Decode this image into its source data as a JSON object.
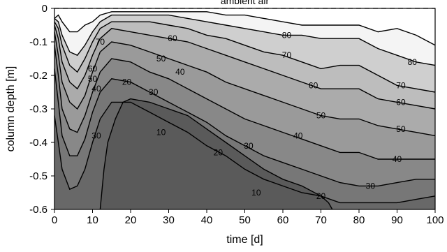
{
  "chart_data": {
    "type": "contour",
    "xlabel": "time [d]",
    "ylabel": "column depth [m]",
    "xlim": [
      0,
      100
    ],
    "ylim": [
      -0.6,
      0
    ],
    "xticks": [
      "0",
      "10",
      "20",
      "30",
      "40",
      "50",
      "60",
      "70",
      "80",
      "90",
      "100"
    ],
    "yticks": [
      "0",
      "-0.1",
      "-0.2",
      "-0.3",
      "-0.4",
      "-0.5",
      "-0.6"
    ],
    "annotation": "ambient air",
    "reference_line": {
      "y": 0,
      "style": "dashed"
    },
    "fill_colors": [
      "#5a5a5a",
      "#686868",
      "#777777",
      "#888888",
      "#9a9a9a",
      "#ababab",
      "#bdbdbd",
      "#cfcfcf",
      "#f4f4f4"
    ],
    "top_contour": [
      [
        0,
        -0.03
      ],
      [
        1,
        -0.02
      ],
      [
        2,
        -0.04
      ],
      [
        4,
        -0.07
      ],
      [
        6,
        -0.07
      ],
      [
        8,
        -0.05
      ],
      [
        10,
        -0.04
      ],
      [
        12,
        -0.02
      ],
      [
        15,
        -0.01
      ],
      [
        20,
        -0.01
      ],
      [
        25,
        -0.01
      ],
      [
        30,
        -0.01
      ],
      [
        35,
        -0.01
      ],
      [
        40,
        -0.01
      ],
      [
        45,
        -0.02
      ],
      [
        50,
        -0.02
      ],
      [
        55,
        -0.03
      ],
      [
        60,
        -0.04
      ],
      [
        65,
        -0.05
      ],
      [
        70,
        -0.05
      ],
      [
        75,
        -0.05
      ],
      [
        80,
        -0.05
      ],
      [
        85,
        -0.07
      ],
      [
        90,
        -0.06
      ],
      [
        95,
        -0.08
      ],
      [
        100,
        -0.11
      ]
    ],
    "contours": [
      {
        "level": 80,
        "points": [
          [
            0,
            -0.03
          ],
          [
            1,
            -0.04
          ],
          [
            2,
            -0.08
          ],
          [
            4,
            -0.13
          ],
          [
            6,
            -0.14
          ],
          [
            8,
            -0.11
          ],
          [
            10,
            -0.07
          ],
          [
            12,
            -0.04
          ],
          [
            15,
            -0.02
          ],
          [
            20,
            -0.02
          ],
          [
            25,
            -0.02
          ],
          [
            30,
            -0.02
          ],
          [
            35,
            -0.03
          ],
          [
            40,
            -0.04
          ],
          [
            45,
            -0.05
          ],
          [
            50,
            -0.06
          ],
          [
            55,
            -0.07
          ],
          [
            60,
            -0.08
          ],
          [
            65,
            -0.08
          ],
          [
            70,
            -0.09
          ],
          [
            75,
            -0.09
          ],
          [
            80,
            -0.09
          ],
          [
            85,
            -0.12
          ],
          [
            90,
            -0.14
          ],
          [
            95,
            -0.16
          ],
          [
            100,
            -0.17
          ]
        ]
      },
      {
        "level": 70,
        "points": [
          [
            0,
            -0.04
          ],
          [
            1,
            -0.06
          ],
          [
            2,
            -0.11
          ],
          [
            4,
            -0.17
          ],
          [
            6,
            -0.19
          ],
          [
            8,
            -0.15
          ],
          [
            10,
            -0.1
          ],
          [
            12,
            -0.06
          ],
          [
            15,
            -0.04
          ],
          [
            20,
            -0.04
          ],
          [
            25,
            -0.04
          ],
          [
            30,
            -0.05
          ],
          [
            35,
            -0.06
          ],
          [
            40,
            -0.08
          ],
          [
            45,
            -0.09
          ],
          [
            50,
            -0.11
          ],
          [
            55,
            -0.13
          ],
          [
            60,
            -0.14
          ],
          [
            65,
            -0.16
          ],
          [
            70,
            -0.18
          ],
          [
            75,
            -0.17
          ],
          [
            80,
            -0.17
          ],
          [
            85,
            -0.2
          ],
          [
            90,
            -0.23
          ],
          [
            95,
            -0.24
          ],
          [
            100,
            -0.25
          ]
        ]
      },
      {
        "level": 60,
        "points": [
          [
            0,
            -0.05
          ],
          [
            1,
            -0.09
          ],
          [
            2,
            -0.16
          ],
          [
            4,
            -0.22
          ],
          [
            6,
            -0.24
          ],
          [
            8,
            -0.2
          ],
          [
            10,
            -0.14
          ],
          [
            12,
            -0.09
          ],
          [
            15,
            -0.06
          ],
          [
            20,
            -0.07
          ],
          [
            25,
            -0.08
          ],
          [
            30,
            -0.09
          ],
          [
            35,
            -0.1
          ],
          [
            40,
            -0.12
          ],
          [
            45,
            -0.14
          ],
          [
            50,
            -0.16
          ],
          [
            55,
            -0.18
          ],
          [
            60,
            -0.2
          ],
          [
            65,
            -0.22
          ],
          [
            70,
            -0.24
          ],
          [
            75,
            -0.24
          ],
          [
            80,
            -0.24
          ],
          [
            85,
            -0.27
          ],
          [
            90,
            -0.28
          ],
          [
            95,
            -0.29
          ],
          [
            100,
            -0.3
          ]
        ]
      },
      {
        "level": 50,
        "points": [
          [
            0,
            -0.07
          ],
          [
            1,
            -0.14
          ],
          [
            2,
            -0.22
          ],
          [
            4,
            -0.28
          ],
          [
            6,
            -0.3
          ],
          [
            8,
            -0.26
          ],
          [
            10,
            -0.19
          ],
          [
            12,
            -0.13
          ],
          [
            15,
            -0.1
          ],
          [
            20,
            -0.11
          ],
          [
            25,
            -0.13
          ],
          [
            30,
            -0.15
          ],
          [
            35,
            -0.17
          ],
          [
            40,
            -0.19
          ],
          [
            45,
            -0.22
          ],
          [
            50,
            -0.24
          ],
          [
            55,
            -0.26
          ],
          [
            60,
            -0.28
          ],
          [
            65,
            -0.3
          ],
          [
            70,
            -0.32
          ],
          [
            75,
            -0.33
          ],
          [
            80,
            -0.33
          ],
          [
            85,
            -0.35
          ],
          [
            90,
            -0.36
          ],
          [
            95,
            -0.37
          ],
          [
            100,
            -0.38
          ]
        ]
      },
      {
        "level": 40,
        "points": [
          [
            0,
            -0.11
          ],
          [
            1,
            -0.2
          ],
          [
            2,
            -0.3
          ],
          [
            4,
            -0.36
          ],
          [
            6,
            -0.37
          ],
          [
            8,
            -0.32
          ],
          [
            10,
            -0.25
          ],
          [
            12,
            -0.19
          ],
          [
            15,
            -0.15
          ],
          [
            20,
            -0.16
          ],
          [
            25,
            -0.19
          ],
          [
            30,
            -0.21
          ],
          [
            35,
            -0.24
          ],
          [
            40,
            -0.27
          ],
          [
            45,
            -0.3
          ],
          [
            50,
            -0.33
          ],
          [
            55,
            -0.35
          ],
          [
            60,
            -0.37
          ],
          [
            65,
            -0.39
          ],
          [
            70,
            -0.41
          ],
          [
            75,
            -0.43
          ],
          [
            80,
            -0.43
          ],
          [
            85,
            -0.45
          ],
          [
            90,
            -0.45
          ],
          [
            95,
            -0.45
          ],
          [
            100,
            -0.45
          ]
        ]
      },
      {
        "level": 30,
        "points": [
          [
            0,
            -0.18
          ],
          [
            1,
            -0.28
          ],
          [
            2,
            -0.38
          ],
          [
            4,
            -0.44
          ],
          [
            6,
            -0.44
          ],
          [
            8,
            -0.39
          ],
          [
            10,
            -0.31
          ],
          [
            12,
            -0.25
          ],
          [
            15,
            -0.21
          ],
          [
            20,
            -0.22
          ],
          [
            25,
            -0.25
          ],
          [
            30,
            -0.28
          ],
          [
            35,
            -0.31
          ],
          [
            40,
            -0.34
          ],
          [
            45,
            -0.38
          ],
          [
            50,
            -0.41
          ],
          [
            55,
            -0.44
          ],
          [
            60,
            -0.46
          ],
          [
            65,
            -0.48
          ],
          [
            70,
            -0.5
          ],
          [
            75,
            -0.52
          ],
          [
            80,
            -0.53
          ],
          [
            85,
            -0.53
          ],
          [
            90,
            -0.52
          ],
          [
            95,
            -0.51
          ],
          [
            100,
            -0.51
          ]
        ]
      },
      {
        "level": 20,
        "points": [
          [
            0,
            -0.32
          ],
          [
            1,
            -0.4
          ],
          [
            2,
            -0.48
          ],
          [
            4,
            -0.54
          ],
          [
            6,
            -0.53
          ],
          [
            8,
            -0.48
          ],
          [
            10,
            -0.4
          ],
          [
            12,
            -0.33
          ],
          [
            15,
            -0.28
          ],
          [
            20,
            -0.28
          ],
          [
            25,
            -0.31
          ],
          [
            30,
            -0.34
          ],
          [
            35,
            -0.37
          ],
          [
            40,
            -0.41
          ],
          [
            45,
            -0.44
          ],
          [
            50,
            -0.48
          ],
          [
            55,
            -0.51
          ],
          [
            60,
            -0.53
          ],
          [
            65,
            -0.55
          ],
          [
            70,
            -0.56
          ],
          [
            75,
            -0.58
          ],
          [
            80,
            -0.58
          ],
          [
            85,
            -0.58
          ],
          [
            90,
            -0.58
          ],
          [
            95,
            -0.57
          ],
          [
            100,
            -0.56
          ]
        ]
      },
      {
        "level": 10,
        "points": [
          [
            12,
            -0.6
          ],
          [
            13,
            -0.48
          ],
          [
            14,
            -0.4
          ],
          [
            16,
            -0.33
          ],
          [
            18,
            -0.28
          ],
          [
            20,
            -0.27
          ],
          [
            25,
            -0.28
          ],
          [
            30,
            -0.3
          ],
          [
            35,
            -0.32
          ],
          [
            40,
            -0.36
          ],
          [
            45,
            -0.4
          ],
          [
            50,
            -0.44
          ],
          [
            55,
            -0.48
          ],
          [
            60,
            -0.51
          ],
          [
            65,
            -0.53
          ],
          [
            70,
            -0.56
          ],
          [
            72,
            -0.58
          ],
          [
            73,
            -0.6
          ]
        ]
      }
    ],
    "contour_labels": [
      {
        "text": "80",
        "x": 61,
        "y": -0.08
      },
      {
        "text": "80",
        "x": 94,
        "y": -0.16
      },
      {
        "text": "70",
        "x": 12,
        "y": -0.1
      },
      {
        "text": "70",
        "x": 61,
        "y": -0.14
      },
      {
        "text": "70",
        "x": 91,
        "y": -0.23
      },
      {
        "text": "60",
        "x": 31,
        "y": -0.09
      },
      {
        "text": "60",
        "x": 10,
        "y": -0.18
      },
      {
        "text": "60",
        "x": 68,
        "y": -0.23
      },
      {
        "text": "60",
        "x": 91,
        "y": -0.28
      },
      {
        "text": "50",
        "x": 28,
        "y": -0.15
      },
      {
        "text": "50",
        "x": 10,
        "y": -0.21
      },
      {
        "text": "50",
        "x": 70,
        "y": -0.32
      },
      {
        "text": "50",
        "x": 91,
        "y": -0.36
      },
      {
        "text": "40",
        "x": 33,
        "y": -0.19
      },
      {
        "text": "40",
        "x": 11,
        "y": -0.24
      },
      {
        "text": "40",
        "x": 64,
        "y": -0.38
      },
      {
        "text": "40",
        "x": 90,
        "y": -0.45
      },
      {
        "text": "30",
        "x": 26,
        "y": -0.25
      },
      {
        "text": "30",
        "x": 11,
        "y": -0.38
      },
      {
        "text": "30",
        "x": 51,
        "y": -0.41
      },
      {
        "text": "30",
        "x": 83,
        "y": -0.53
      },
      {
        "text": "20",
        "x": 19,
        "y": -0.22
      },
      {
        "text": "20",
        "x": 43,
        "y": -0.43
      },
      {
        "text": "20",
        "x": 70,
        "y": -0.56
      },
      {
        "text": "10",
        "x": 28,
        "y": -0.37
      },
      {
        "text": "10",
        "x": 53,
        "y": -0.55
      }
    ]
  }
}
